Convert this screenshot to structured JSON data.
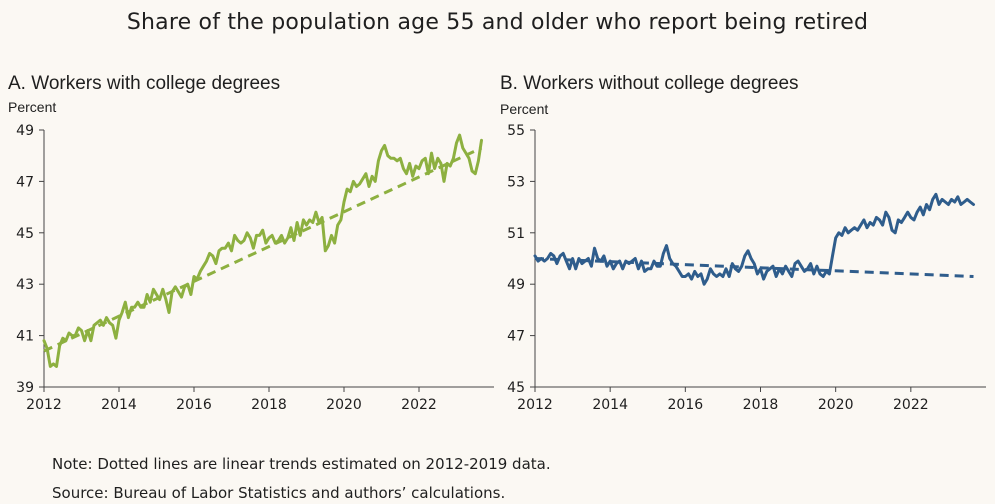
{
  "title": "Share of the population age 55 and older who report being retired",
  "note": "Note: Dotted lines are linear trends estimated on 2012-2019 data.",
  "source": "Source: Bureau of Labor Statistics and authors’ calculations.",
  "chart_data": [
    {
      "type": "line",
      "panel_title": "A. Workers with college degrees",
      "unit_label": "Percent",
      "xlim": [
        2012,
        2024
      ],
      "ylim": [
        39,
        49
      ],
      "xticks": [
        2012,
        2014,
        2016,
        2018,
        2020,
        2022
      ],
      "yticks": [
        39,
        41,
        43,
        45,
        47,
        49
      ],
      "color": "#8db040",
      "series": [
        {
          "style": "solid",
          "x": [
            2012.0,
            2012.083,
            2012.167,
            2012.25,
            2012.333,
            2012.417,
            2012.5,
            2012.583,
            2012.667,
            2012.75,
            2012.833,
            2012.917,
            2013.0,
            2013.083,
            2013.167,
            2013.25,
            2013.333,
            2013.417,
            2013.5,
            2013.583,
            2013.667,
            2013.75,
            2013.833,
            2013.917,
            2014.0,
            2014.083,
            2014.167,
            2014.25,
            2014.333,
            2014.417,
            2014.5,
            2014.583,
            2014.667,
            2014.75,
            2014.833,
            2014.917,
            2015.0,
            2015.083,
            2015.167,
            2015.25,
            2015.333,
            2015.417,
            2015.5,
            2015.583,
            2015.667,
            2015.75,
            2015.833,
            2015.917,
            2016.0,
            2016.083,
            2016.167,
            2016.25,
            2016.333,
            2016.417,
            2016.5,
            2016.583,
            2016.667,
            2016.75,
            2016.833,
            2016.917,
            2017.0,
            2017.083,
            2017.167,
            2017.25,
            2017.333,
            2017.417,
            2017.5,
            2017.583,
            2017.667,
            2017.75,
            2017.833,
            2017.917,
            2018.0,
            2018.083,
            2018.167,
            2018.25,
            2018.333,
            2018.417,
            2018.5,
            2018.583,
            2018.667,
            2018.75,
            2018.833,
            2018.917,
            2019.0,
            2019.083,
            2019.167,
            2019.25,
            2019.333,
            2019.417,
            2019.5,
            2019.583,
            2019.667,
            2019.75,
            2019.833,
            2019.917,
            2020.0,
            2020.083,
            2020.167,
            2020.25,
            2020.333,
            2020.417,
            2020.5,
            2020.583,
            2020.667,
            2020.75,
            2020.833,
            2020.917,
            2021.0,
            2021.083,
            2021.167,
            2021.25,
            2021.333,
            2021.417,
            2021.5,
            2021.583,
            2021.667,
            2021.75,
            2021.833,
            2021.917,
            2022.0,
            2022.083,
            2022.167,
            2022.25,
            2022.333,
            2022.417,
            2022.5,
            2022.583,
            2022.667,
            2022.75,
            2022.833,
            2022.917,
            2023.0,
            2023.083,
            2023.167,
            2023.25,
            2023.333,
            2023.417,
            2023.5,
            2023.583,
            2023.667
          ],
          "y": [
            40.8,
            40.5,
            39.8,
            39.9,
            39.8,
            40.6,
            40.9,
            40.8,
            41.1,
            41.0,
            41.0,
            41.3,
            41.2,
            40.8,
            41.2,
            40.8,
            41.4,
            41.5,
            41.6,
            41.4,
            41.7,
            41.5,
            41.4,
            40.9,
            41.6,
            41.9,
            42.3,
            41.7,
            42.1,
            42.1,
            42.3,
            42.1,
            42.1,
            42.6,
            42.3,
            42.8,
            42.6,
            42.4,
            42.8,
            42.4,
            41.9,
            42.7,
            42.9,
            42.7,
            42.5,
            42.9,
            43.0,
            42.6,
            43.3,
            43.2,
            43.5,
            43.7,
            43.9,
            44.2,
            44.1,
            43.8,
            44.3,
            44.4,
            44.4,
            44.6,
            44.3,
            44.9,
            44.7,
            44.6,
            44.7,
            45.0,
            44.8,
            44.4,
            44.9,
            44.9,
            45.1,
            44.6,
            44.8,
            44.9,
            44.6,
            44.7,
            44.9,
            44.6,
            44.8,
            45.2,
            44.7,
            45.4,
            44.9,
            45.5,
            45.3,
            45.5,
            45.4,
            45.8,
            45.4,
            45.6,
            44.3,
            44.5,
            44.9,
            44.6,
            45.3,
            45.5,
            46.2,
            46.7,
            46.6,
            47.0,
            46.8,
            46.9,
            47.1,
            47.3,
            46.8,
            47.2,
            47.0,
            47.8,
            48.2,
            48.4,
            48.0,
            47.9,
            47.9,
            47.8,
            47.9,
            47.5,
            47.3,
            47.7,
            47.2,
            47.6,
            47.5,
            47.8,
            47.9,
            47.3,
            48.1,
            47.5,
            47.9,
            47.7,
            47.0,
            47.7,
            47.6,
            47.9,
            48.5,
            48.8,
            48.3,
            48.1,
            47.9,
            47.4,
            47.3,
            47.8,
            48.6
          ]
        },
        {
          "style": "dashed",
          "x": [
            2012.0,
            2023.667
          ],
          "y": [
            40.4,
            48.3
          ]
        }
      ]
    },
    {
      "type": "line",
      "panel_title": "B. Workers without college degrees",
      "unit_label": "Percent",
      "xlim": [
        2012,
        2024
      ],
      "ylim": [
        45,
        55
      ],
      "xticks": [
        2012,
        2014,
        2016,
        2018,
        2020,
        2022
      ],
      "yticks": [
        45,
        47,
        49,
        51,
        53,
        55
      ],
      "color": "#2f5d8c",
      "series": [
        {
          "style": "solid",
          "x": [
            2012.0,
            2012.083,
            2012.167,
            2012.25,
            2012.333,
            2012.417,
            2012.5,
            2012.583,
            2012.667,
            2012.75,
            2012.833,
            2012.917,
            2013.0,
            2013.083,
            2013.167,
            2013.25,
            2013.333,
            2013.417,
            2013.5,
            2013.583,
            2013.667,
            2013.75,
            2013.833,
            2013.917,
            2014.0,
            2014.083,
            2014.167,
            2014.25,
            2014.333,
            2014.417,
            2014.5,
            2014.583,
            2014.667,
            2014.75,
            2014.833,
            2014.917,
            2015.0,
            2015.083,
            2015.167,
            2015.25,
            2015.333,
            2015.417,
            2015.5,
            2015.583,
            2015.667,
            2015.75,
            2015.833,
            2015.917,
            2016.0,
            2016.083,
            2016.167,
            2016.25,
            2016.333,
            2016.417,
            2016.5,
            2016.583,
            2016.667,
            2016.75,
            2016.833,
            2016.917,
            2017.0,
            2017.083,
            2017.167,
            2017.25,
            2017.333,
            2017.417,
            2017.5,
            2017.583,
            2017.667,
            2017.75,
            2017.833,
            2017.917,
            2018.0,
            2018.083,
            2018.167,
            2018.25,
            2018.333,
            2018.417,
            2018.5,
            2018.583,
            2018.667,
            2018.75,
            2018.833,
            2018.917,
            2019.0,
            2019.083,
            2019.167,
            2019.25,
            2019.333,
            2019.417,
            2019.5,
            2019.583,
            2019.667,
            2019.75,
            2019.833,
            2019.917,
            2020.0,
            2020.083,
            2020.167,
            2020.25,
            2020.333,
            2020.417,
            2020.5,
            2020.583,
            2020.667,
            2020.75,
            2020.833,
            2020.917,
            2021.0,
            2021.083,
            2021.167,
            2021.25,
            2021.333,
            2021.417,
            2021.5,
            2021.583,
            2021.667,
            2021.75,
            2021.833,
            2021.917,
            2022.0,
            2022.083,
            2022.167,
            2022.25,
            2022.333,
            2022.417,
            2022.5,
            2022.583,
            2022.667,
            2022.75,
            2022.833,
            2022.917,
            2023.0,
            2023.083,
            2023.167,
            2023.25,
            2023.333,
            2023.417,
            2023.5,
            2023.583,
            2023.667
          ],
          "y": [
            50.1,
            49.9,
            50.0,
            49.9,
            50.0,
            50.2,
            50.1,
            49.8,
            50.1,
            50.2,
            49.9,
            49.6,
            50.0,
            49.6,
            50.0,
            49.8,
            49.9,
            50.0,
            49.7,
            50.4,
            50.0,
            49.9,
            50.1,
            49.7,
            49.9,
            49.6,
            49.8,
            49.9,
            49.6,
            49.9,
            49.8,
            49.9,
            50.0,
            49.6,
            49.9,
            49.5,
            49.6,
            49.6,
            49.9,
            49.7,
            49.7,
            50.2,
            50.5,
            50.0,
            49.8,
            49.7,
            49.5,
            49.3,
            49.3,
            49.4,
            49.2,
            49.5,
            49.3,
            49.4,
            49.0,
            49.2,
            49.6,
            49.4,
            49.3,
            49.4,
            49.3,
            49.6,
            49.3,
            49.8,
            49.6,
            49.5,
            49.7,
            50.1,
            50.3,
            50.0,
            49.8,
            49.4,
            49.6,
            49.2,
            49.5,
            49.6,
            49.7,
            49.3,
            49.6,
            49.4,
            49.7,
            49.5,
            49.3,
            49.8,
            49.9,
            49.7,
            49.5,
            49.6,
            49.8,
            49.4,
            49.7,
            49.4,
            49.3,
            49.5,
            49.4,
            50.1,
            50.8,
            51.0,
            50.9,
            51.2,
            51.0,
            51.1,
            51.2,
            51.1,
            51.3,
            51.5,
            51.2,
            51.4,
            51.3,
            51.6,
            51.5,
            51.3,
            51.8,
            51.6,
            51.1,
            51.0,
            51.5,
            51.4,
            51.6,
            51.8,
            51.6,
            51.5,
            51.8,
            52.0,
            51.7,
            52.1,
            51.9,
            52.3,
            52.5,
            52.1,
            52.3,
            52.2,
            52.1,
            52.3,
            52.2,
            52.4,
            52.1,
            52.2,
            52.3,
            52.2,
            52.1
          ]
        },
        {
          "style": "dashed",
          "x": [
            2012.0,
            2023.667
          ],
          "y": [
            50.0,
            49.3
          ]
        }
      ]
    }
  ]
}
